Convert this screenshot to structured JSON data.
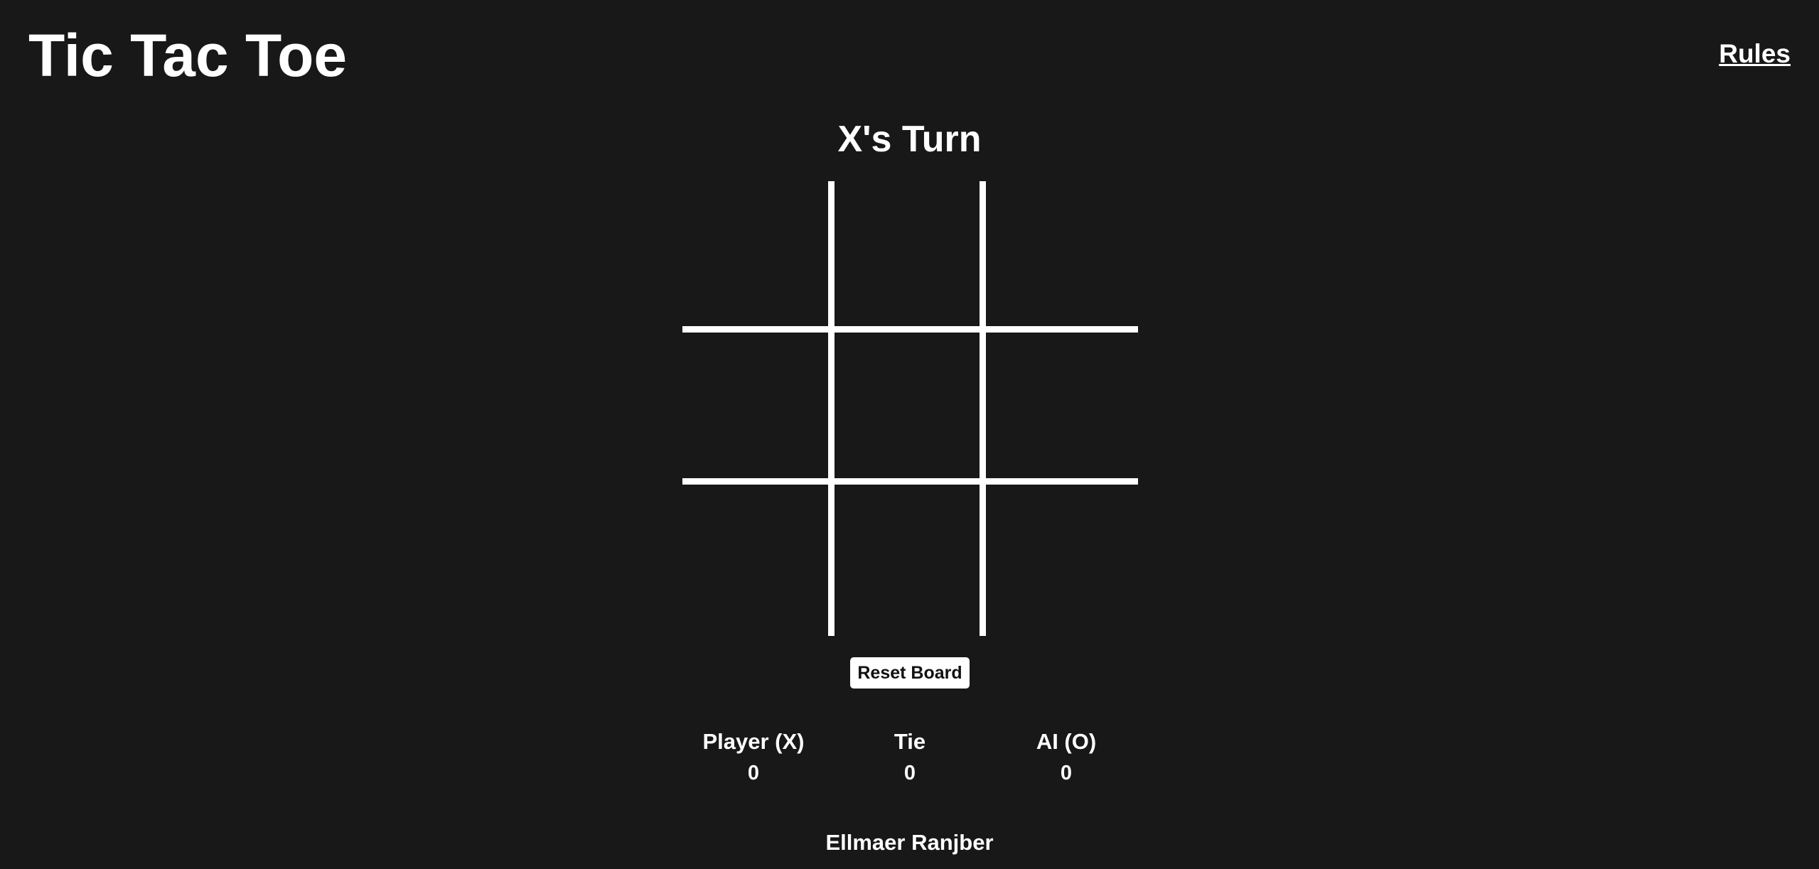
{
  "header": {
    "title": "Tic Tac Toe",
    "rules_link": "Rules"
  },
  "status": {
    "turn": "X's Turn"
  },
  "board": {
    "cells": [
      "",
      "",
      "",
      "",
      "",
      "",
      "",
      "",
      ""
    ]
  },
  "controls": {
    "reset_label": "Reset Board"
  },
  "scoreboard": {
    "player": {
      "label": "Player (X)",
      "value": "0"
    },
    "tie": {
      "label": "Tie",
      "value": "0"
    },
    "ai": {
      "label": "AI (O)",
      "value": "0"
    }
  },
  "footer": {
    "credit": "Ellmaer Ranjber"
  },
  "colors": {
    "background": "#181818",
    "foreground": "#ffffff"
  }
}
